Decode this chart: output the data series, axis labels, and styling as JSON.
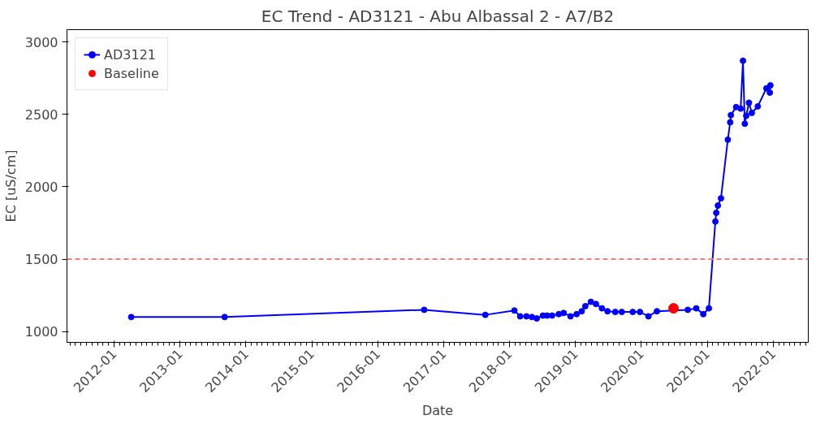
{
  "chart_data": {
    "type": "line",
    "title": "EC Trend - AD3121 - Abu Albassal 2 - A7/B2",
    "xlabel": "Date",
    "ylabel": "EC [uS/cm]",
    "xlim": [
      "2011-04-15",
      "2022-07-15"
    ],
    "ylim": [
      925,
      3085
    ],
    "xticks": [
      {
        "value": "2012-01-01",
        "label": "2012-01"
      },
      {
        "value": "2013-01-01",
        "label": "2013-01"
      },
      {
        "value": "2014-01-01",
        "label": "2014-01"
      },
      {
        "value": "2015-01-01",
        "label": "2015-01"
      },
      {
        "value": "2016-01-01",
        "label": "2016-01"
      },
      {
        "value": "2017-01-01",
        "label": "2017-01"
      },
      {
        "value": "2018-01-01",
        "label": "2018-01"
      },
      {
        "value": "2019-01-01",
        "label": "2019-01"
      },
      {
        "value": "2020-01-01",
        "label": "2020-01"
      },
      {
        "value": "2021-01-01",
        "label": "2021-01"
      },
      {
        "value": "2022-01-01",
        "label": "2022-01"
      }
    ],
    "yticks": [
      1000,
      1500,
      2000,
      2500,
      3000
    ],
    "grid": false,
    "legend": "top left",
    "ref_lines": [
      {
        "axis": "y",
        "value": 1500,
        "color": "#f08080",
        "line_style": "dashed"
      }
    ],
    "series": [
      {
        "name": "AD3121",
        "color": "#0000ff",
        "marker": "circle",
        "line_style": "solid",
        "x": [
          "2012-04-05",
          "2013-09-05",
          "2016-09-15",
          "2017-08-20",
          "2018-01-28",
          "2018-03-01",
          "2018-04-05",
          "2018-05-05",
          "2018-06-01",
          "2018-07-05",
          "2018-07-28",
          "2018-08-25",
          "2018-10-01",
          "2018-10-28",
          "2018-12-05",
          "2019-01-08",
          "2019-02-05",
          "2019-02-25",
          "2019-03-28",
          "2019-04-25",
          "2019-05-28",
          "2019-06-28",
          "2019-08-10",
          "2019-09-15",
          "2019-11-15",
          "2019-12-25",
          "2020-02-10",
          "2020-03-28",
          "2020-09-15",
          "2020-11-01",
          "2020-12-10",
          "2021-01-10",
          "2021-02-15",
          "2021-02-20",
          "2021-03-01",
          "2021-03-18",
          "2021-04-25",
          "2021-05-08",
          "2021-05-12",
          "2021-06-10",
          "2021-07-05",
          "2021-07-18",
          "2021-07-28",
          "2021-08-05",
          "2021-08-20",
          "2021-09-05",
          "2021-10-08",
          "2021-11-25",
          "2021-12-14",
          "2021-12-17"
        ],
        "values": [
          1100,
          1100,
          1150,
          1115,
          1145,
          1105,
          1105,
          1100,
          1090,
          1110,
          1110,
          1110,
          1120,
          1128,
          1105,
          1120,
          1140,
          1175,
          1205,
          1190,
          1160,
          1140,
          1135,
          1135,
          1135,
          1135,
          1105,
          1140,
          1150,
          1160,
          1120,
          1160,
          1760,
          1820,
          1870,
          1920,
          2325,
          2445,
          2495,
          2550,
          2540,
          2870,
          2435,
          2490,
          2580,
          2510,
          2555,
          2680,
          2650,
          2700
        ]
      },
      {
        "name": "Baseline",
        "type": "scatter",
        "color": "#ff0000",
        "marker": "circle",
        "x": [
          "2020-06-28"
        ],
        "values": [
          1160
        ]
      }
    ]
  }
}
